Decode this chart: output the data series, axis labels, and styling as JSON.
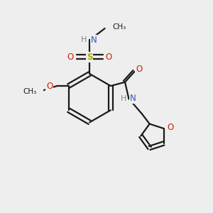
{
  "background_color": "#eeeeee",
  "bond_color": "#1a1a1a",
  "colors": {
    "N": "#3355bb",
    "O": "#cc2200",
    "S": "#aaaa00",
    "H": "#888888",
    "C": "#1a1a1a"
  }
}
